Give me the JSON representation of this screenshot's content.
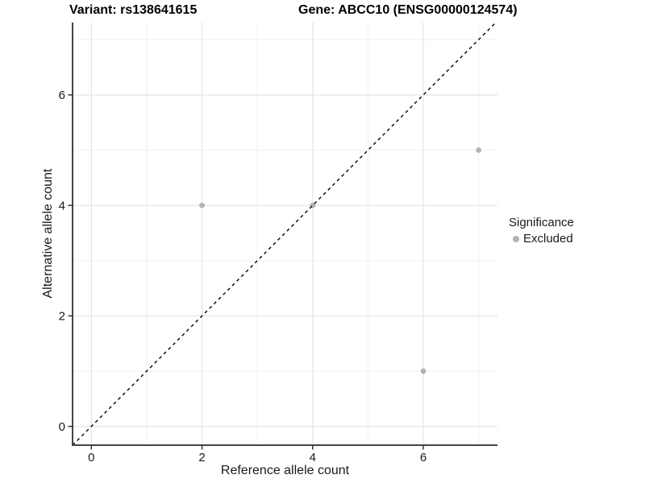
{
  "chart_data": {
    "type": "scatter",
    "title_left": "Variant: rs138641615",
    "title_right": "Gene: ABCC10 (ENSG00000124574)",
    "xlabel": "Reference allele count",
    "ylabel": "Alternative allele count",
    "xlim": [
      -0.34,
      7.34
    ],
    "ylim": [
      -0.34,
      7.31
    ],
    "x_major_ticks": [
      0,
      2,
      4,
      6
    ],
    "x_minor_ticks": [
      1,
      3,
      5,
      7
    ],
    "y_major_ticks": [
      0,
      2,
      4,
      6
    ],
    "y_minor_ticks": [
      1,
      3,
      5,
      7
    ],
    "grid": true,
    "legend_position": "right",
    "identity_line": {
      "style": "dashed",
      "color": "#000000",
      "from": [
        -0.34,
        -0.34
      ],
      "to": [
        7.31,
        7.31
      ]
    },
    "series": [
      {
        "name": "Excluded",
        "color": "#b3b3b3",
        "points": [
          [
            2,
            4
          ],
          [
            4,
            4
          ],
          [
            6,
            1
          ],
          [
            7,
            5
          ]
        ]
      }
    ],
    "legend": {
      "title": "Significance",
      "entries": [
        {
          "label": "Excluded",
          "color": "#b3b3b3"
        }
      ]
    }
  },
  "colors": {
    "background": "#ffffff",
    "axis_line": "#444444",
    "tick_mark": "#333333",
    "major_grid": "#e2e2e2",
    "minor_grid": "#efefef",
    "point": "#b3b3b3",
    "text": "#1a1a1a"
  }
}
